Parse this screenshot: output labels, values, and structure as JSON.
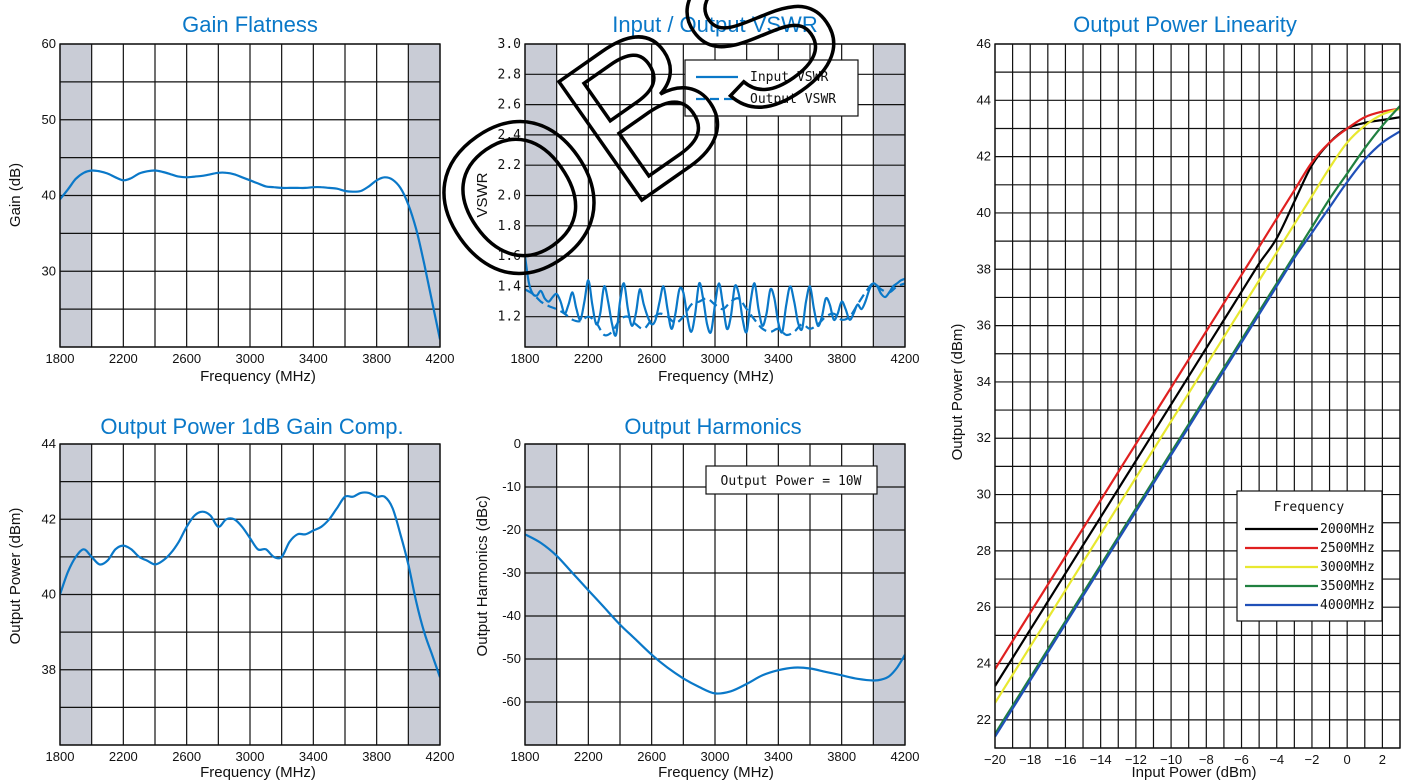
{
  "colors": {
    "curve": "#0a78c8",
    "band": "#c9ccd6",
    "grid": "#111111",
    "title": "#0a78c8"
  },
  "watermark": "OBS",
  "chart_data": [
    {
      "type": "line",
      "title": "Gain Flatness",
      "xlabel": "Frequency (MHz)",
      "ylabel": "Gain (dB)",
      "xlim": [
        1800,
        4200
      ],
      "ylim": [
        20,
        60
      ],
      "xticks": [
        1800,
        2200,
        2600,
        3000,
        3400,
        3800,
        4200
      ],
      "yticks": [
        30,
        40,
        50,
        60
      ],
      "grid": true,
      "shaded_x": [
        [
          1800,
          2000
        ],
        [
          4000,
          4200
        ]
      ],
      "series": [
        {
          "x": [
            1800,
            1850,
            1900,
            1950,
            2000,
            2050,
            2100,
            2150,
            2200,
            2250,
            2300,
            2350,
            2400,
            2450,
            2500,
            2550,
            2600,
            2650,
            2700,
            2750,
            2800,
            2850,
            2900,
            2950,
            3000,
            3050,
            3100,
            3150,
            3200,
            3250,
            3300,
            3350,
            3400,
            3450,
            3500,
            3550,
            3600,
            3650,
            3700,
            3750,
            3800,
            3850,
            3900,
            3950,
            4000,
            4050,
            4100,
            4150,
            4200
          ],
          "y": [
            39.5,
            40.8,
            42.2,
            43.0,
            43.3,
            43.2,
            42.9,
            42.4,
            42.0,
            42.3,
            42.9,
            43.2,
            43.3,
            43.1,
            42.8,
            42.5,
            42.4,
            42.5,
            42.6,
            42.8,
            43.0,
            43.0,
            42.8,
            42.4,
            42.0,
            41.6,
            41.2,
            41.1,
            41.0,
            41.0,
            41.0,
            41.0,
            41.1,
            41.1,
            41.0,
            40.9,
            40.6,
            40.5,
            40.6,
            41.2,
            42.0,
            42.4,
            42.1,
            41.0,
            38.8,
            35.5,
            31.0,
            26.0,
            21.0
          ]
        }
      ]
    },
    {
      "type": "line",
      "title": "Input / Output VSWR",
      "xlabel": "Frequency (MHz)",
      "ylabel": "VSWR",
      "xlim": [
        1800,
        4200
      ],
      "ylim": [
        1.0,
        3.0
      ],
      "xticks": [
        1800,
        2200,
        2600,
        3000,
        3400,
        3800,
        4200
      ],
      "yticks": [
        1.2,
        1.4,
        1.6,
        1.8,
        2.0,
        2.2,
        2.4,
        2.6,
        2.8,
        3.0
      ],
      "ytick_labels": [
        "1.2",
        "1.4",
        "1.6",
        "1.8",
        "2.0",
        "2.2",
        "2.4",
        "2.6",
        "2.8",
        "3.0"
      ],
      "grid": true,
      "shaded_x": [
        [
          1800,
          2000
        ],
        [
          4000,
          4200
        ]
      ],
      "legend": "top-right",
      "series": [
        {
          "name": "Input VSWR",
          "style": "solid",
          "x": [
            1800,
            1825,
            1850,
            1875,
            1900,
            1925,
            1950,
            1975,
            2000,
            2025,
            2050,
            2075,
            2100,
            2125,
            2150,
            2175,
            2200,
            2225,
            2250,
            2275,
            2300,
            2325,
            2350,
            2375,
            2400,
            2425,
            2450,
            2475,
            2500,
            2525,
            2550,
            2575,
            2600,
            2625,
            2650,
            2675,
            2700,
            2725,
            2750,
            2775,
            2800,
            2825,
            2850,
            2875,
            2900,
            2925,
            2950,
            2975,
            3000,
            3025,
            3050,
            3075,
            3100,
            3125,
            3150,
            3175,
            3200,
            3225,
            3250,
            3275,
            3300,
            3325,
            3350,
            3375,
            3400,
            3425,
            3450,
            3475,
            3500,
            3525,
            3550,
            3575,
            3600,
            3625,
            3650,
            3675,
            3700,
            3725,
            3750,
            3775,
            3800,
            3825,
            3850,
            3875,
            3900,
            3925,
            3950,
            3975,
            4000,
            4025,
            4050,
            4075,
            4100,
            4125,
            4150,
            4175,
            4200
          ],
          "y": [
            1.6,
            1.42,
            1.35,
            1.34,
            1.37,
            1.32,
            1.3,
            1.33,
            1.35,
            1.3,
            1.22,
            1.28,
            1.36,
            1.25,
            1.18,
            1.3,
            1.44,
            1.28,
            1.15,
            1.22,
            1.4,
            1.3,
            1.15,
            1.08,
            1.3,
            1.42,
            1.25,
            1.14,
            1.22,
            1.38,
            1.28,
            1.2,
            1.15,
            1.18,
            1.3,
            1.4,
            1.25,
            1.12,
            1.22,
            1.38,
            1.36,
            1.2,
            1.1,
            1.22,
            1.42,
            1.32,
            1.15,
            1.1,
            1.28,
            1.42,
            1.28,
            1.12,
            1.2,
            1.4,
            1.35,
            1.18,
            1.1,
            1.3,
            1.42,
            1.25,
            1.14,
            1.22,
            1.38,
            1.32,
            1.16,
            1.1,
            1.28,
            1.4,
            1.3,
            1.16,
            1.12,
            1.3,
            1.4,
            1.25,
            1.14,
            1.2,
            1.32,
            1.28,
            1.18,
            1.22,
            1.3,
            1.25,
            1.18,
            1.22,
            1.28,
            1.25,
            1.3,
            1.38,
            1.42,
            1.4,
            1.35,
            1.33,
            1.36,
            1.4,
            1.42,
            1.44,
            1.45
          ]
        },
        {
          "name": "Output VSWR",
          "style": "dashed",
          "x": [
            1800,
            1850,
            1900,
            1950,
            2000,
            2050,
            2100,
            2150,
            2200,
            2250,
            2300,
            2350,
            2400,
            2450,
            2500,
            2550,
            2600,
            2650,
            2700,
            2750,
            2800,
            2850,
            2900,
            2950,
            3000,
            3050,
            3100,
            3150,
            3200,
            3250,
            3300,
            3350,
            3400,
            3450,
            3500,
            3550,
            3600,
            3650,
            3700,
            3750,
            3800,
            3850,
            3900,
            3950,
            4000,
            4050,
            4100,
            4150,
            4200
          ],
          "y": [
            1.38,
            1.35,
            1.3,
            1.27,
            1.25,
            1.22,
            1.18,
            1.17,
            1.2,
            1.16,
            1.08,
            1.1,
            1.18,
            1.2,
            1.15,
            1.12,
            1.18,
            1.22,
            1.2,
            1.16,
            1.2,
            1.28,
            1.3,
            1.32,
            1.28,
            1.25,
            1.3,
            1.32,
            1.25,
            1.18,
            1.12,
            1.1,
            1.12,
            1.08,
            1.1,
            1.15,
            1.12,
            1.15,
            1.2,
            1.22,
            1.18,
            1.2,
            1.28,
            1.36,
            1.42,
            1.38,
            1.36,
            1.4,
            1.42
          ]
        }
      ]
    },
    {
      "type": "line",
      "title": "Output Power Linearity",
      "xlabel": "Input Power (dBm)",
      "ylabel": "Output Power (dBm)",
      "xlim": [
        -20,
        3
      ],
      "ylim": [
        21,
        46
      ],
      "xticks": [
        -20,
        -18,
        -16,
        -14,
        -12,
        -10,
        -8,
        -6,
        -4,
        -2,
        0,
        2
      ],
      "xtick_labels": [
        "−20",
        "−18",
        "−16",
        "−14",
        "−12",
        "−10",
        "−8",
        "−6",
        "−4",
        "−2",
        "0",
        "2"
      ],
      "yticks": [
        22,
        24,
        26,
        28,
        30,
        32,
        34,
        36,
        38,
        40,
        42,
        44,
        46
      ],
      "grid": true,
      "legend_title": "Frequency",
      "legend": "bottom-right",
      "series": [
        {
          "name": "2000MHz",
          "color": "#000000",
          "offset": 43.2,
          "psat": 43.4,
          "x": [
            -20,
            -19,
            -18,
            -17,
            -16,
            -15,
            -14,
            -13,
            -12,
            -11,
            -10,
            -9,
            -8,
            -7,
            -6,
            -5,
            -4,
            -3,
            -2,
            -1,
            0,
            1,
            2,
            3
          ],
          "y": [
            23.2,
            24.2,
            25.2,
            26.2,
            27.2,
            28.2,
            29.2,
            30.2,
            31.2,
            32.2,
            33.2,
            34.2,
            35.2,
            36.2,
            37.2,
            38.2,
            39.1,
            40.4,
            41.7,
            42.5,
            43.0,
            43.2,
            43.3,
            43.4
          ]
        },
        {
          "name": "2500MHz",
          "color": "#e02020",
          "offset": 43.8,
          "psat": 43.8,
          "x": [
            -20,
            -19,
            -18,
            -17,
            -16,
            -15,
            -14,
            -13,
            -12,
            -11,
            -10,
            -9,
            -8,
            -7,
            -6,
            -5,
            -4,
            -3,
            -2,
            -1,
            0,
            1,
            2,
            3
          ],
          "y": [
            23.8,
            24.8,
            25.8,
            26.8,
            27.8,
            28.8,
            29.8,
            30.8,
            31.8,
            32.8,
            33.8,
            34.8,
            35.8,
            36.8,
            37.8,
            38.8,
            39.8,
            40.8,
            41.8,
            42.5,
            43.0,
            43.4,
            43.6,
            43.7
          ]
        },
        {
          "name": "3000MHz",
          "color": "#e8e830",
          "offset": 42.6,
          "psat": 43.8,
          "x": [
            -20,
            -19,
            -18,
            -17,
            -16,
            -15,
            -14,
            -13,
            -12,
            -11,
            -10,
            -9,
            -8,
            -7,
            -6,
            -5,
            -4,
            -3,
            -2,
            -1,
            0,
            1,
            2,
            3
          ],
          "y": [
            22.6,
            23.6,
            24.6,
            25.6,
            26.6,
            27.6,
            28.6,
            29.6,
            30.6,
            31.6,
            32.6,
            33.6,
            34.6,
            35.6,
            36.6,
            37.6,
            38.6,
            39.6,
            40.6,
            41.6,
            42.5,
            43.1,
            43.5,
            43.7
          ]
        },
        {
          "name": "3500MHz",
          "color": "#208040",
          "offset": 41.5,
          "psat": 44.1,
          "x": [
            -20,
            -19,
            -18,
            -17,
            -16,
            -15,
            -14,
            -13,
            -12,
            -11,
            -10,
            -9,
            -8,
            -7,
            -6,
            -5,
            -4,
            -3,
            -2,
            -1,
            0,
            1,
            2,
            3
          ],
          "y": [
            21.5,
            22.5,
            23.5,
            24.5,
            25.5,
            26.5,
            27.5,
            28.5,
            29.5,
            30.5,
            31.5,
            32.5,
            33.5,
            34.5,
            35.5,
            36.5,
            37.5,
            38.5,
            39.5,
            40.5,
            41.4,
            42.3,
            43.1,
            43.8
          ]
        },
        {
          "name": "4000MHz",
          "color": "#2050b8",
          "offset": 41.5,
          "psat": 43.0,
          "x": [
            -20,
            -19,
            -18,
            -17,
            -16,
            -15,
            -14,
            -13,
            -12,
            -11,
            -10,
            -9,
            -8,
            -7,
            -6,
            -5,
            -4,
            -3,
            -2,
            -1,
            0,
            1,
            2,
            3
          ],
          "y": [
            21.4,
            22.4,
            23.4,
            24.4,
            25.4,
            26.4,
            27.4,
            28.4,
            29.4,
            30.4,
            31.4,
            32.4,
            33.4,
            34.4,
            35.4,
            36.4,
            37.4,
            38.4,
            39.3,
            40.2,
            41.1,
            41.9,
            42.5,
            42.9
          ]
        }
      ]
    },
    {
      "type": "line",
      "title": "Output Power 1dB Gain Comp.",
      "xlabel": "Frequency (MHz)",
      "ylabel": "Output Power (dBm)",
      "xlim": [
        1800,
        4200
      ],
      "ylim": [
        36,
        44
      ],
      "xticks": [
        1800,
        2200,
        2600,
        3000,
        3400,
        3800,
        4200
      ],
      "yticks": [
        38,
        40,
        42,
        44
      ],
      "grid": true,
      "shaded_x": [
        [
          1800,
          2000
        ],
        [
          4000,
          4200
        ]
      ],
      "series": [
        {
          "x": [
            1800,
            1850,
            1900,
            1950,
            2000,
            2050,
            2100,
            2150,
            2200,
            2250,
            2300,
            2350,
            2400,
            2450,
            2500,
            2550,
            2600,
            2650,
            2700,
            2750,
            2800,
            2850,
            2900,
            2950,
            3000,
            3050,
            3100,
            3150,
            3200,
            3250,
            3300,
            3350,
            3400,
            3450,
            3500,
            3550,
            3600,
            3650,
            3700,
            3750,
            3800,
            3850,
            3900,
            3950,
            4000,
            4050,
            4100,
            4150,
            4200
          ],
          "y": [
            40.0,
            40.6,
            41.0,
            41.2,
            41.0,
            40.8,
            40.9,
            41.2,
            41.3,
            41.2,
            41.0,
            40.9,
            40.8,
            40.9,
            41.1,
            41.4,
            41.8,
            42.1,
            42.2,
            42.1,
            41.8,
            42.0,
            42.0,
            41.8,
            41.5,
            41.2,
            41.2,
            41.0,
            41.0,
            41.4,
            41.6,
            41.6,
            41.7,
            41.8,
            42.0,
            42.3,
            42.6,
            42.6,
            42.7,
            42.7,
            42.6,
            42.6,
            42.3,
            41.6,
            40.8,
            39.8,
            39.0,
            38.4,
            37.8
          ]
        }
      ]
    },
    {
      "type": "line",
      "title": "Output Harmonics",
      "xlabel": "Frequency (MHz)",
      "ylabel": "Output Harmonics (dBc)",
      "xlim": [
        1800,
        4200
      ],
      "ylim": [
        -70,
        0
      ],
      "xticks": [
        1800,
        2200,
        2600,
        3000,
        3400,
        3800,
        4200
      ],
      "yticks": [
        -60,
        -50,
        -40,
        -30,
        -20,
        -10,
        0
      ],
      "grid": true,
      "shaded_x": [
        [
          1800,
          2000
        ],
        [
          4000,
          4200
        ]
      ],
      "annotation": "Output Power = 10W",
      "series": [
        {
          "x": [
            1800,
            1900,
            2000,
            2100,
            2200,
            2300,
            2400,
            2500,
            2600,
            2700,
            2800,
            2900,
            3000,
            3100,
            3200,
            3300,
            3400,
            3500,
            3600,
            3700,
            3800,
            3900,
            4000,
            4050,
            4100,
            4150,
            4200
          ],
          "y": [
            -21.0,
            -23.0,
            -26.0,
            -30.0,
            -34.0,
            -38.0,
            -42.0,
            -45.5,
            -49.0,
            -52.0,
            -54.5,
            -56.5,
            -58.0,
            -57.5,
            -55.8,
            -53.8,
            -52.6,
            -52.0,
            -52.2,
            -53.0,
            -53.8,
            -54.6,
            -55.0,
            -54.8,
            -54.0,
            -52.0,
            -49.0
          ]
        }
      ]
    }
  ]
}
